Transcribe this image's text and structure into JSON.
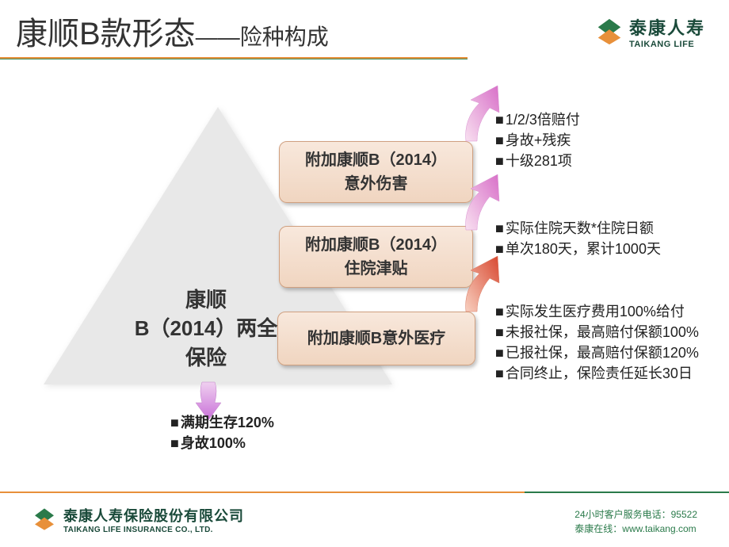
{
  "header": {
    "title_main": "康顺B款形态",
    "title_sub": "——险种构成",
    "logo": {
      "cn": "泰康人寿",
      "en": "TAIKANG LIFE",
      "icon_color1": "#2a7a4a",
      "icon_color2": "#e8903a"
    },
    "line_color_top": "#e8903a",
    "line_color_bottom": "#3a8a5a"
  },
  "main_product": {
    "text": "康顺\nB（2014）两全\n保险",
    "triangle_color": "#e8e8e8",
    "details": [
      "满期生存120%",
      "身故100%"
    ],
    "arrow_color": "#d890e8"
  },
  "riders": [
    {
      "label": "附加康顺B（2014）\n意外伤害",
      "box_bg_top": "#f8e8dc",
      "box_bg_bottom": "#f0d5c0",
      "box_border": "#d0a080",
      "arrow_color_start": "#f8d8f0",
      "arrow_color_end": "#d870c8",
      "details": [
        "1/2/3倍赔付",
        "身故+残疾",
        "十级281项"
      ]
    },
    {
      "label": "附加康顺B（2014）\n住院津贴",
      "box_bg_top": "#f8e8dc",
      "box_bg_bottom": "#f0d5c0",
      "box_border": "#d0a080",
      "arrow_color_start": "#f8d8f0",
      "arrow_color_end": "#d870c8",
      "details": [
        "实际住院天数*住院日额",
        "单次180天，累计1000天"
      ]
    },
    {
      "label": "附加康顺B意外医疗",
      "box_bg_top": "#f8e8dc",
      "box_bg_bottom": "#f0d5c0",
      "box_border": "#d0a080",
      "arrow_color_start": "#f8c8b8",
      "arrow_color_end": "#d84830",
      "details": [
        "实际发生医疗费用100%给付",
        "未报社保，最高赔付保额100%",
        "已报社保，最高赔付保额120%",
        "合同终止，保险责任延长30日"
      ]
    }
  ],
  "footer": {
    "company_cn": "泰康人寿保险股份有限公司",
    "company_en": "TAIKANG LIFE INSURANCE CO., LTD.",
    "hotline_label": "24小时客户服务电话：",
    "hotline_number": "95522",
    "website_label": "泰康在线：",
    "website_url": "www.taikang.com",
    "line_color_left": "#e8903a",
    "line_color_right": "#2a7a4a",
    "text_color": "#2a7a4a"
  },
  "typography": {
    "title_main_size": 40,
    "title_sub_size": 28,
    "rider_box_size": 20,
    "main_product_size": 26,
    "detail_size": 18,
    "footer_size": 12
  }
}
